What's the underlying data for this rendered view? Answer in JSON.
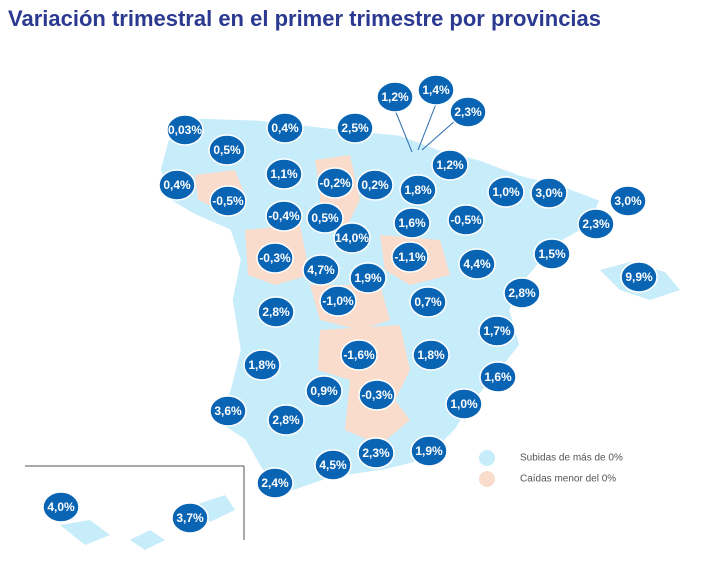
{
  "title": "Variación trimestral en el primer trimestre por provincias",
  "legend": [
    {
      "label": "Subidas de más de 0%"
    },
    {
      "label": "Caídas menor del 0%"
    }
  ],
  "labels": [
    "0,03%",
    "0,5%",
    "0,4%",
    "2,5%",
    "1,2%",
    "1,4%",
    "2,3%",
    "0,4%",
    "-0,5%",
    "1,1%",
    "-0,2%",
    "0,2%",
    "1,8%",
    "1,2%",
    "1,0%",
    "3,0%",
    "3,0%",
    "2,3%",
    "-0,4%",
    "0,5%",
    "1,6%",
    "-0,5%",
    "14,0%",
    "-0,3%",
    "4,7%",
    "1,9%",
    "-1,1%",
    "4,4%",
    "1,5%",
    "9,9%",
    "-1,0%",
    "0,7%",
    "2,8%",
    "2,8%",
    "1,7%",
    "-1,6%",
    "1,8%",
    "1,8%",
    "1,6%",
    "0,9%",
    "-0,3%",
    "3,6%",
    "2,8%",
    "1,0%",
    "2,3%",
    "1,9%",
    "4,5%",
    "2,4%",
    "4,0%",
    "3,7%"
  ]
}
